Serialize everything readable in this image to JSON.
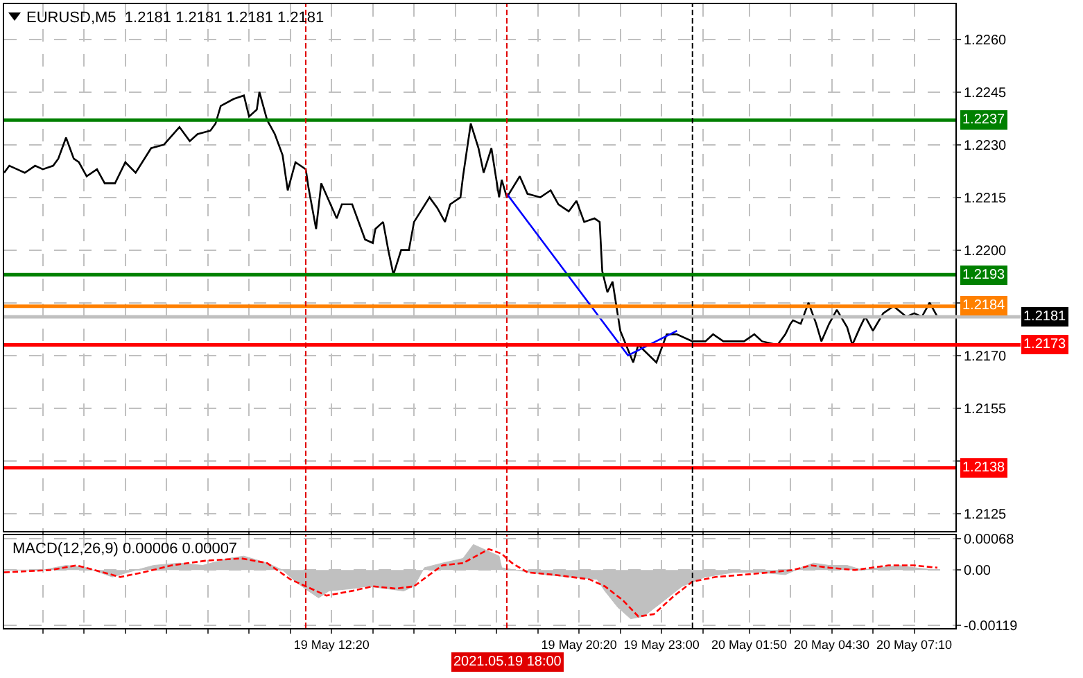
{
  "chart_data": [
    {
      "type": "line",
      "title": "EURUSD,M5  1.2181 1.2181 1.2181 1.2181",
      "xlim": [
        "2021-05-19T01:45",
        "2021-05-20T08:30"
      ],
      "ylim": [
        1.212,
        1.227
      ],
      "tick_labels": "y",
      "grid": true,
      "xticks": [
        {
          "value": "2021-05-19T03:00",
          "label": null
        },
        {
          "value": "2021-05-19T04:20",
          "label": null
        },
        {
          "value": "2021-05-19T05:40",
          "label": null
        },
        {
          "value": "2021-05-19T07:00",
          "label": null
        },
        {
          "value": "2021-05-19T08:20",
          "label": null
        },
        {
          "value": "2021-05-19T09:40",
          "label": null
        },
        {
          "value": "2021-05-19T11:00",
          "label": null
        },
        {
          "value": "2021-05-19T12:20",
          "label": null
        },
        {
          "value": "2021-05-19T13:40",
          "label": null
        },
        {
          "value": "2021-05-19T15:00",
          "label": null
        },
        {
          "value": "2021-05-19T16:20",
          "label": null
        },
        {
          "value": "2021-05-19T17:40",
          "label": null
        },
        {
          "value": "2021-05-19T19:00",
          "label": null
        },
        {
          "value": "2021-05-19T20:20",
          "label": null
        },
        {
          "value": "2021-05-19T21:40",
          "label": null
        },
        {
          "value": "2021-05-19T23:00",
          "label": null
        },
        {
          "value": "2021-05-20T00:20",
          "label": null
        },
        {
          "value": "2021-05-20T01:50",
          "label": null
        },
        {
          "value": "2021-05-20T03:10",
          "label": null
        },
        {
          "value": "2021-05-20T04:30",
          "label": null
        },
        {
          "value": "2021-05-20T05:50",
          "label": null
        },
        {
          "value": "2021-05-20T07:10",
          "label": null
        }
      ],
      "yticks": [
        {
          "value": 1.2125,
          "label": "1.2125"
        },
        {
          "value": 1.214,
          "label": null
        },
        {
          "value": 1.2155,
          "label": "1.2155"
        },
        {
          "value": 1.217,
          "label": "1.2170"
        },
        {
          "value": 1.2185,
          "label": null
        },
        {
          "value": 1.22,
          "label": "1.2200"
        },
        {
          "value": 1.2215,
          "label": "1.2215"
        },
        {
          "value": 1.223,
          "label": "1.2230"
        },
        {
          "value": 1.2245,
          "label": "1.2245"
        },
        {
          "value": 1.226,
          "label": "1.2260"
        }
      ],
      "ref_lines": [
        {
          "axis": "y",
          "value": 1.2237,
          "label": "1.2237",
          "color": "#008000"
        },
        {
          "axis": "y",
          "value": 1.2193,
          "label": "1.2193",
          "color": "#008000"
        },
        {
          "axis": "y",
          "value": 1.2184,
          "label": "1.2184",
          "color": "#ff8000"
        },
        {
          "axis": "y",
          "value": 1.2181,
          "label": "1.2181",
          "color": "#c0c0c0"
        },
        {
          "axis": "y",
          "value": 1.2173,
          "label": "1.2173",
          "color": "#ff0000"
        },
        {
          "axis": "y",
          "value": 1.2138,
          "label": "1.2138",
          "color": "#ff0000"
        },
        {
          "axis": "x",
          "value": "2021-05-19T11:30",
          "color": "#e00000",
          "line_style": "dashed"
        },
        {
          "axis": "x",
          "value": "2021-05-19T18:00",
          "color": "#e00000",
          "line_style": "dashed"
        },
        {
          "axis": "x",
          "value": "2021-05-20T00:00",
          "color": "#000000",
          "line_style": "dashed"
        }
      ],
      "series": [
        {
          "color": "#000000",
          "x": [
            "2021-05-19T01:45",
            "2021-05-19T01:55",
            "2021-05-19T02:10",
            "2021-05-19T02:25",
            "2021-05-19T02:45",
            "2021-05-19T03:00",
            "2021-05-19T03:20",
            "2021-05-19T03:30",
            "2021-05-19T03:45",
            "2021-05-19T04:00",
            "2021-05-19T04:10",
            "2021-05-19T04:25",
            "2021-05-19T04:45",
            "2021-05-19T05:00",
            "2021-05-19T05:20",
            "2021-05-19T05:40",
            "2021-05-19T06:00",
            "2021-05-19T06:30",
            "2021-05-19T06:55",
            "2021-05-19T07:25",
            "2021-05-19T07:45",
            "2021-05-19T08:00",
            "2021-05-19T08:25",
            "2021-05-19T08:35",
            "2021-05-19T08:45",
            "2021-05-19T09:10",
            "2021-05-19T09:30",
            "2021-05-19T09:40",
            "2021-05-19T09:55",
            "2021-05-19T10:00",
            "2021-05-19T10:15",
            "2021-05-19T10:30",
            "2021-05-19T10:45",
            "2021-05-19T10:55",
            "2021-05-19T11:10",
            "2021-05-19T11:30",
            "2021-05-19T11:35",
            "2021-05-19T11:50",
            "2021-05-19T12:00",
            "2021-05-19T12:15",
            "2021-05-19T12:30",
            "2021-05-19T12:40",
            "2021-05-19T13:00",
            "2021-05-19T13:25",
            "2021-05-19T13:40",
            "2021-05-19T13:45",
            "2021-05-19T14:00",
            "2021-05-19T14:10",
            "2021-05-19T14:20",
            "2021-05-19T14:35",
            "2021-05-19T14:50",
            "2021-05-19T15:00",
            "2021-05-19T15:30",
            "2021-05-19T15:45",
            "2021-05-19T16:00",
            "2021-05-19T16:10",
            "2021-05-19T16:30",
            "2021-05-19T16:35",
            "2021-05-19T16:50",
            "2021-05-19T17:05",
            "2021-05-19T17:15",
            "2021-05-19T17:30",
            "2021-05-19T17:45",
            "2021-05-19T17:50",
            "2021-05-19T18:00",
            "2021-05-19T18:25",
            "2021-05-19T18:40",
            "2021-05-19T19:05",
            "2021-05-19T19:25",
            "2021-05-19T19:40",
            "2021-05-19T20:00",
            "2021-05-19T20:15",
            "2021-05-19T20:30",
            "2021-05-19T20:50",
            "2021-05-19T21:00",
            "2021-05-19T21:05",
            "2021-05-19T21:15",
            "2021-05-19T21:25",
            "2021-05-19T21:40",
            "2021-05-19T22:05",
            "2021-05-19T22:15",
            "2021-05-19T22:50",
            "2021-05-19T23:10",
            "2021-05-19T23:30",
            "2021-05-20T00:00",
            "2021-05-20T00:25",
            "2021-05-20T00:40",
            "2021-05-20T01:00",
            "2021-05-20T01:40",
            "2021-05-20T02:00",
            "2021-05-20T02:15",
            "2021-05-20T02:45",
            "2021-05-20T03:00",
            "2021-05-20T03:10",
            "2021-05-20T03:15",
            "2021-05-20T03:30",
            "2021-05-20T03:45",
            "2021-05-20T04:00",
            "2021-05-20T04:10",
            "2021-05-20T04:25",
            "2021-05-20T04:40",
            "2021-05-20T05:00",
            "2021-05-20T05:10",
            "2021-05-20T05:25",
            "2021-05-20T05:35",
            "2021-05-20T05:50",
            "2021-05-20T06:10",
            "2021-05-20T06:30",
            "2021-05-20T06:55",
            "2021-05-20T07:10",
            "2021-05-20T07:25",
            "2021-05-20T07:40",
            "2021-05-20T07:55"
          ],
          "values": [
            1.2222,
            1.2224,
            1.2223,
            1.2222,
            1.2224,
            1.2223,
            1.2224,
            1.2226,
            1.2232,
            1.2226,
            1.2225,
            1.2221,
            1.2223,
            1.2219,
            1.2219,
            1.2225,
            1.2222,
            1.2229,
            1.223,
            1.2235,
            1.2231,
            1.2233,
            1.2234,
            1.2236,
            1.2241,
            1.2243,
            1.2244,
            1.2238,
            1.224,
            1.2245,
            1.2237,
            1.2233,
            1.2227,
            1.2217,
            1.2225,
            1.2223,
            1.2218,
            1.2206,
            1.2219,
            1.2214,
            1.2209,
            1.2213,
            1.2213,
            1.2203,
            1.2202,
            1.2206,
            1.2208,
            1.22,
            1.2193,
            1.22,
            1.22,
            1.2208,
            1.2215,
            1.2212,
            1.2208,
            1.2213,
            1.2215,
            1.2221,
            1.2236,
            1.2229,
            1.2222,
            1.2229,
            1.2215,
            1.222,
            1.2215,
            1.2221,
            1.2216,
            1.2215,
            1.2217,
            1.2213,
            1.2211,
            1.2214,
            1.2208,
            1.2209,
            1.2208,
            1.2194,
            1.2188,
            1.2191,
            1.2177,
            1.2168,
            1.2173,
            1.2168,
            1.2176,
            1.2176,
            1.2174,
            1.2174,
            1.2176,
            1.2174,
            1.2174,
            1.2176,
            1.2174,
            1.2173,
            1.2176,
            1.2179,
            1.218,
            1.2179,
            1.2185,
            1.2179,
            1.2174,
            1.2179,
            1.2183,
            1.2178,
            1.2173,
            1.2178,
            1.2181,
            1.2177,
            1.2182,
            1.2184,
            1.2181,
            1.2182,
            1.2181,
            1.2185,
            1.2181
          ]
        },
        {
          "color": "#0000ff",
          "x": [
            "2021-05-19T18:00",
            "2021-05-19T21:55",
            "2021-05-19T23:30"
          ],
          "values": [
            1.2216,
            1.217,
            1.2177
          ]
        }
      ]
    },
    {
      "type": "area",
      "title": "MACD(12,26,9) 0.00006 0.00007",
      "xlim": [
        "2021-05-19T01:45",
        "2021-05-20T08:30"
      ],
      "ylim": [
        -0.00125,
        0.00075
      ],
      "grid": true,
      "xticks": [
        {
          "value": "2021-05-19T03:00",
          "label": null
        },
        {
          "value": "2021-05-19T04:20",
          "label": null
        },
        {
          "value": "2021-05-19T05:40",
          "label": null
        },
        {
          "value": "2021-05-19T07:00",
          "label": null
        },
        {
          "value": "2021-05-19T08:20",
          "label": null
        },
        {
          "value": "2021-05-19T09:40",
          "label": null
        },
        {
          "value": "2021-05-19T11:00",
          "label": null
        },
        {
          "value": "2021-05-19T12:20",
          "label": "19 May 12:20"
        },
        {
          "value": "2021-05-19T13:40",
          "label": null
        },
        {
          "value": "2021-05-19T15:00",
          "label": null
        },
        {
          "value": "2021-05-19T16:20",
          "label": null
        },
        {
          "value": "2021-05-19T17:40",
          "label": null
        },
        {
          "value": "2021-05-19T19:00",
          "label": null
        },
        {
          "value": "2021-05-19T20:20",
          "label": "19 May 20:20"
        },
        {
          "value": "2021-05-19T21:40",
          "label": null
        },
        {
          "value": "2021-05-19T23:00",
          "label": "19 May 23:00"
        },
        {
          "value": "2021-05-20T00:20",
          "label": null
        },
        {
          "value": "2021-05-20T01:50",
          "label": "20 May 01:50"
        },
        {
          "value": "2021-05-20T03:10",
          "label": null
        },
        {
          "value": "2021-05-20T04:30",
          "label": "20 May 04:30"
        },
        {
          "value": "2021-05-20T05:50",
          "label": null
        },
        {
          "value": "2021-05-20T07:10",
          "label": "20 May 07:10"
        }
      ],
      "yticks": [
        0.00068,
        {
          "value": 0,
          "label": "0.00"
        },
        -0.00119
      ],
      "ref_lines": [
        {
          "axis": "x",
          "value": "2021-05-19T11:30",
          "color": "#e00000",
          "line_style": "dashed"
        },
        {
          "axis": "x",
          "value": "2021-05-19T18:00",
          "color": "#e00000",
          "line_style": "dashed",
          "label": "2021.05.19 18:00"
        },
        {
          "axis": "x",
          "value": "2021-05-20T00:00",
          "color": "#000000",
          "line_style": "dashed"
        }
      ],
      "series": [
        {
          "color": "#c0c0c0",
          "x": [
            "2021-05-19T01:45",
            "2021-05-19T03:00",
            "2021-05-19T03:45",
            "2021-05-19T04:25",
            "2021-05-19T05:15",
            "2021-05-19T05:45",
            "2021-05-19T06:35",
            "2021-05-19T07:25",
            "2021-05-19T08:10",
            "2021-05-19T09:00",
            "2021-05-19T09:30",
            "2021-05-19T10:15",
            "2021-05-19T10:45",
            "2021-05-19T11:10",
            "2021-05-19T11:35",
            "2021-05-19T11:55",
            "2021-05-19T12:15",
            "2021-05-19T13:00",
            "2021-05-19T13:30",
            "2021-05-19T14:05",
            "2021-05-19T14:40",
            "2021-05-19T15:00",
            "2021-05-19T15:20",
            "2021-05-19T15:55",
            "2021-05-19T16:35",
            "2021-05-19T16:55",
            "2021-05-19T17:15",
            "2021-05-19T17:45",
            "2021-05-19T17:50",
            "2021-05-19T18:15",
            "2021-05-19T19:15",
            "2021-05-19T20:00",
            "2021-05-19T20:55",
            "2021-05-19T21:10",
            "2021-05-19T21:35",
            "2021-05-19T22:00",
            "2021-05-19T22:25",
            "2021-05-19T23:00",
            "2021-05-19T23:40",
            "2021-05-20T00:25",
            "2021-05-20T01:20",
            "2021-05-20T02:10",
            "2021-05-20T03:00",
            "2021-05-20T03:30",
            "2021-05-20T03:55",
            "2021-05-20T04:25",
            "2021-05-20T05:00",
            "2021-05-20T05:30",
            "2021-05-20T06:00",
            "2021-05-20T06:40",
            "2021-05-20T07:10",
            "2021-05-20T07:55"
          ],
          "values": [
            0,
            0,
            0.0001,
            5e-05,
            -0.00015,
            -5e-05,
            0.0001,
            0.00015,
            0.0001,
            0.00025,
            0.0003,
            0.00015,
            0,
            -0.00025,
            -0.00045,
            -0.0006,
            -0.00045,
            -0.0004,
            -0.00035,
            -0.0004,
            -0.00045,
            -0.00035,
            5e-05,
            0.00015,
            0.00025,
            0.00055,
            0.00045,
            0.0003,
            5e-05,
            0,
            -0.0001,
            -0.00015,
            -0.0002,
            -0.00045,
            -0.0008,
            -0.00105,
            -0.001,
            -0.0007,
            -0.00035,
            -0.00015,
            -5e-05,
            -5e-05,
            -0.0001,
            5e-05,
            0.00015,
            0.0001,
            0.0001,
            0,
            5e-05,
            0.0001,
            5e-05,
            0
          ]
        },
        {
          "type": "line",
          "color": "#ff0000",
          "line_style": "dashed",
          "x": [
            "2021-05-19T01:45",
            "2021-05-19T03:15",
            "2021-05-19T04:05",
            "2021-05-19T04:40",
            "2021-05-19T05:30",
            "2021-05-19T06:15",
            "2021-05-19T07:10",
            "2021-05-19T08:15",
            "2021-05-19T09:25",
            "2021-05-19T10:15",
            "2021-05-19T11:00",
            "2021-05-19T11:30",
            "2021-05-19T12:10",
            "2021-05-19T13:00",
            "2021-05-19T13:40",
            "2021-05-19T14:25",
            "2021-05-19T15:00",
            "2021-05-19T15:30",
            "2021-05-19T15:55",
            "2021-05-19T16:35",
            "2021-05-19T17:25",
            "2021-05-19T17:50",
            "2021-05-19T18:10",
            "2021-05-19T18:40",
            "2021-05-19T19:30",
            "2021-05-19T20:40",
            "2021-05-19T21:10",
            "2021-05-19T21:45",
            "2021-05-19T22:15",
            "2021-05-19T22:45",
            "2021-05-19T23:25",
            "2021-05-20T00:00",
            "2021-05-20T00:45",
            "2021-05-20T01:40",
            "2021-05-20T02:30",
            "2021-05-20T03:15",
            "2021-05-20T03:50",
            "2021-05-20T04:25",
            "2021-05-20T05:15",
            "2021-05-20T06:20",
            "2021-05-20T07:10",
            "2021-05-20T07:55"
          ],
          "values": [
            -5e-05,
            0,
            0.0001,
            0,
            -0.00015,
            -5e-05,
            0.0001,
            0.0002,
            0.00025,
            0.00015,
            -0.0002,
            -0.00035,
            -0.00055,
            -0.00045,
            -0.00035,
            -0.0004,
            -0.00035,
            -0.0001,
            0.0001,
            0.00015,
            0.00045,
            0.00035,
            0.00015,
            -5e-05,
            -0.0001,
            -0.0002,
            -0.00035,
            -0.00065,
            -0.001,
            -0.00095,
            -0.00055,
            -0.00025,
            -0.00015,
            -0.0001,
            -5e-05,
            0,
            0.0001,
            5e-05,
            0,
            0.0001,
            0.0001,
            5e-05
          ]
        }
      ]
    }
  ]
}
